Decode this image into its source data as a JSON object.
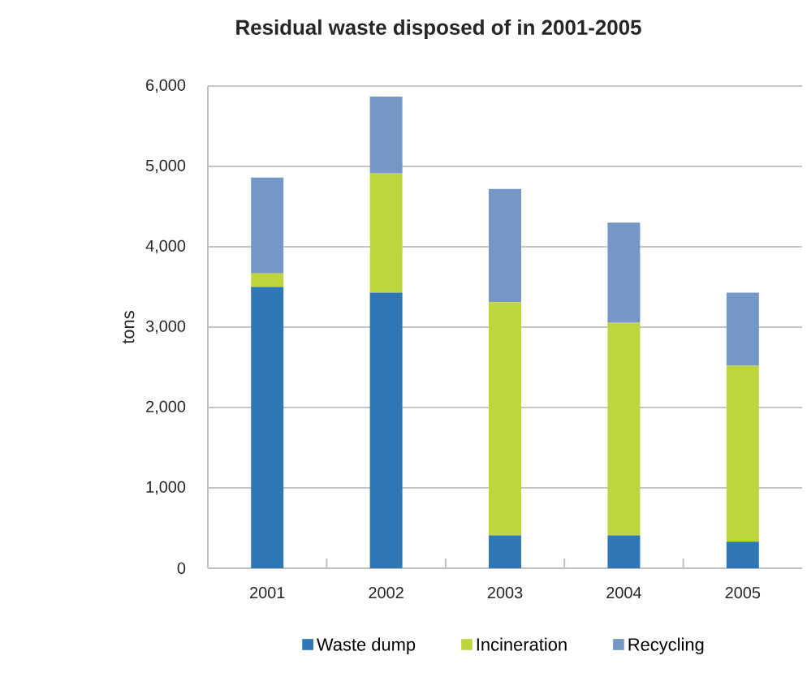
{
  "chart_data": {
    "type": "bar",
    "title": "Residual waste disposed of in 2001-2005",
    "ylabel": "tons",
    "stacked": true,
    "categories": [
      "2001",
      "2002",
      "2003",
      "2004",
      "2005"
    ],
    "series": [
      {
        "name": "Waste dump",
        "color": "#3077b5",
        "values": [
          3500,
          3430,
          410,
          410,
          330
        ]
      },
      {
        "name": "Incineration",
        "color": "#bed63c",
        "values": [
          170,
          1490,
          2900,
          2650,
          2190
        ]
      },
      {
        "name": "Recycling",
        "color": "#7497c5",
        "values": [
          1190,
          950,
          1410,
          1240,
          910
        ]
      }
    ],
    "ylim": [
      0,
      6000
    ],
    "yticks": [
      0,
      {
        "value": 1000,
        "label": "1,000"
      },
      {
        "value": 2000,
        "label": "2,000"
      },
      {
        "value": 3000,
        "label": "3,000"
      },
      {
        "value": 4000,
        "label": "4,000"
      },
      {
        "value": 5000,
        "label": "5,000"
      },
      {
        "value": 6000,
        "label": "6,000"
      }
    ],
    "grid": "y",
    "legend": "bottom"
  }
}
